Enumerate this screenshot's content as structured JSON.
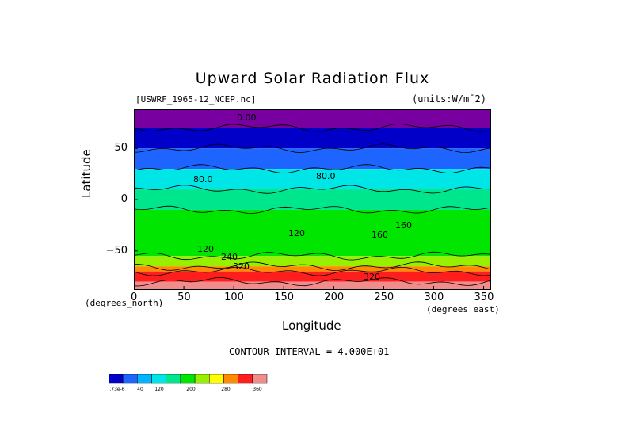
{
  "chart_data": {
    "type": "heatmap",
    "title": "Upward Solar Radiation Flux",
    "file_label": "[USWRF_1965-12_NCEP.nc]",
    "units_label": "(units:W/m^2)",
    "xlabel": "Longitude",
    "ylabel": "Latitude",
    "x_unit_label": "(degrees_east)",
    "y_unit_label": "(degrees_north)",
    "xlim": [
      0,
      357.5
    ],
    "ylim": [
      -88,
      88
    ],
    "x_ticks": [
      0,
      50,
      100,
      150,
      200,
      250,
      300,
      350
    ],
    "y_ticks": [
      50,
      0,
      -50
    ],
    "contour_interval_text": "CONTOUR INTERVAL = 4.000E+01",
    "contour_labels": [
      "0.00",
      "80.0",
      "80.0",
      "120",
      "160",
      "120",
      "160",
      "240",
      "320",
      "320"
    ],
    "colorbar": {
      "labels": [
        "-4.73e-6",
        "40",
        "120",
        "200",
        "280",
        "360"
      ],
      "colors": [
        "#0000c8",
        "#1e64ff",
        "#00b4ff",
        "#00e6e6",
        "#00e68c",
        "#00e600",
        "#96f000",
        "#ffff00",
        "#ff8c00",
        "#ff1e1e",
        "#f08c8c"
      ]
    },
    "bands": [
      {
        "lat_from": 88,
        "lat_to": 70,
        "value": 0,
        "color": "#7800a0"
      },
      {
        "lat_from": 70,
        "lat_to": 50,
        "value": 20,
        "color": "#0000c8"
      },
      {
        "lat_from": 50,
        "lat_to": 30,
        "value": 60,
        "color": "#1e64ff"
      },
      {
        "lat_from": 30,
        "lat_to": 10,
        "value": 100,
        "color": "#00e6e6"
      },
      {
        "lat_from": 10,
        "lat_to": -10,
        "value": 140,
        "color": "#00e68c"
      },
      {
        "lat_from": -10,
        "lat_to": -55,
        "value": 160,
        "color": "#00e600"
      },
      {
        "lat_from": -55,
        "lat_to": -65,
        "value": 220,
        "color": "#96f000"
      },
      {
        "lat_from": -65,
        "lat_to": -70,
        "value": 300,
        "color": "#ff8c00"
      },
      {
        "lat_from": -70,
        "lat_to": -80,
        "value": 340,
        "color": "#ff1e1e"
      },
      {
        "lat_from": -80,
        "lat_to": -88,
        "value": 380,
        "color": "#f08c8c"
      }
    ]
  }
}
